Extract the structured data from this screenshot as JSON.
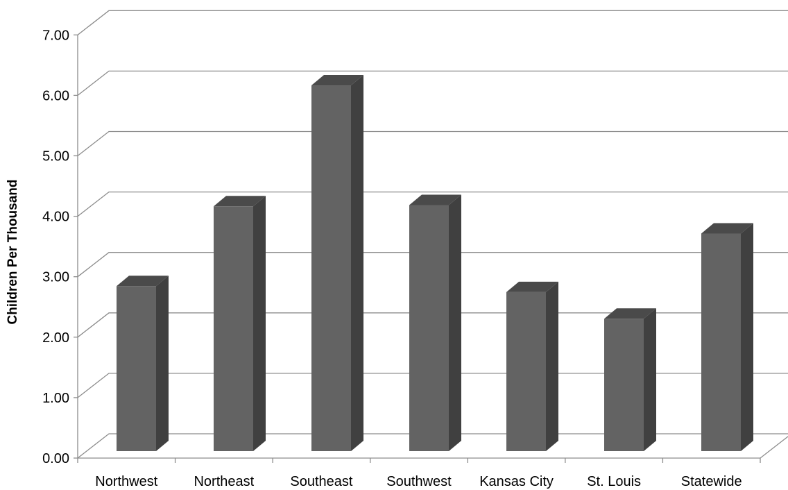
{
  "chart_data": {
    "type": "bar",
    "style": "3d-column",
    "title": "",
    "xlabel": "",
    "ylabel": "Children Per Thousand",
    "ylim": [
      0,
      7
    ],
    "yticks": [
      "0.00",
      "1.00",
      "2.00",
      "3.00",
      "4.00",
      "5.00",
      "6.00",
      "7.00"
    ],
    "grid": true,
    "legend": "none",
    "categories": [
      "Northwest",
      "Northeast",
      "Southeast",
      "Southwest",
      "Kansas City",
      "St. Louis",
      "Statewide"
    ],
    "series": [
      {
        "values": [
          2.73,
          4.05,
          6.05,
          4.07,
          2.63,
          2.19,
          3.6
        ]
      }
    ],
    "colors": {
      "bar_front": "#636363",
      "bar_side": "#404040",
      "bar_top": "#4a4a4a",
      "gridline": "#8c8c8c"
    }
  }
}
